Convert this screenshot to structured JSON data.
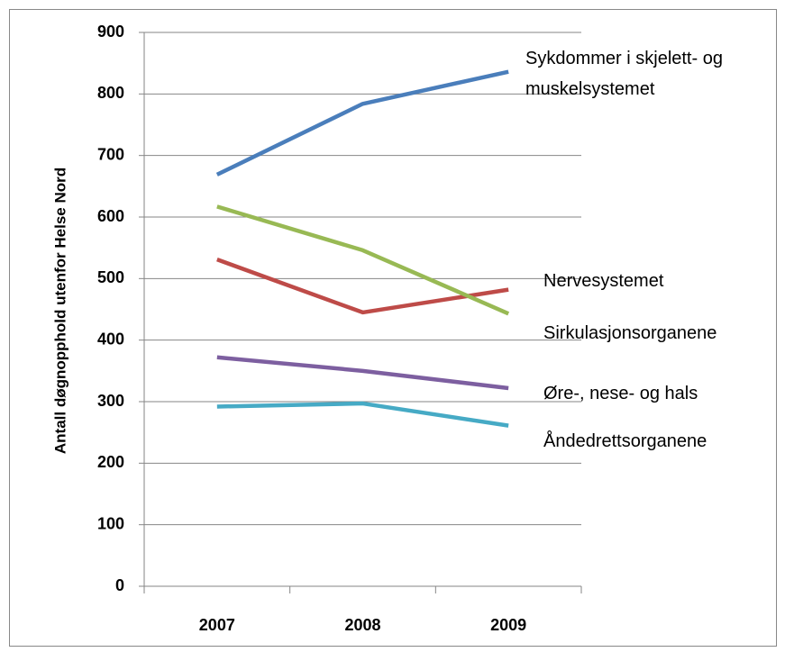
{
  "chart_data": {
    "type": "line",
    "y_axis_label": "Antall døgnopphold utenfor Helse Nord",
    "categories": [
      "2007",
      "2008",
      "2009"
    ],
    "series": [
      {
        "name": "Sykdommer i skjelett- og muskelsystemet",
        "color": "#4a7ebb",
        "values": [
          669,
          784,
          836
        ]
      },
      {
        "name": "Nervesystemet",
        "color": "#be4b48",
        "values": [
          531,
          445,
          482
        ]
      },
      {
        "name": "Sirkulasjonsorganene",
        "color": "#98b954",
        "values": [
          617,
          546,
          443
        ]
      },
      {
        "name": "Øre-, nese- og hals",
        "color": "#7d5fa0",
        "values": [
          372,
          350,
          322
        ]
      },
      {
        "name": "Åndedrettsorganene",
        "color": "#46aac5",
        "values": [
          292,
          297,
          261
        ]
      }
    ],
    "ylim": [
      0,
      900
    ],
    "yticks": [
      0,
      100,
      200,
      300,
      400,
      500,
      600,
      700,
      800,
      900
    ],
    "grid": true
  }
}
